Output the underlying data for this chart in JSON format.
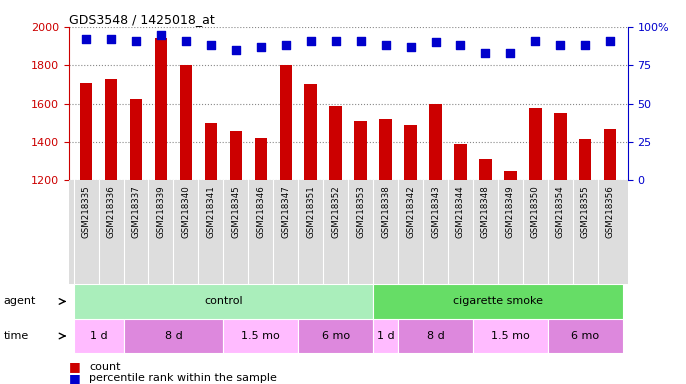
{
  "title": "GDS3548 / 1425018_at",
  "samples": [
    "GSM218335",
    "GSM218336",
    "GSM218337",
    "GSM218339",
    "GSM218340",
    "GSM218341",
    "GSM218345",
    "GSM218346",
    "GSM218347",
    "GSM218351",
    "GSM218352",
    "GSM218353",
    "GSM218338",
    "GSM218342",
    "GSM218343",
    "GSM218344",
    "GSM218348",
    "GSM218349",
    "GSM218350",
    "GSM218354",
    "GSM218355",
    "GSM218356"
  ],
  "counts": [
    1710,
    1730,
    1625,
    1940,
    1800,
    1500,
    1460,
    1420,
    1800,
    1700,
    1590,
    1510,
    1520,
    1490,
    1600,
    1390,
    1310,
    1250,
    1580,
    1550,
    1415,
    1470
  ],
  "percentile_ranks": [
    92,
    92,
    91,
    95,
    91,
    88,
    85,
    87,
    88,
    91,
    91,
    91,
    88,
    87,
    90,
    88,
    83,
    83,
    91,
    88,
    88,
    91
  ],
  "bar_color": "#cc0000",
  "dot_color": "#0000cc",
  "ylim_left": [
    1200,
    2000
  ],
  "ylim_right": [
    0,
    100
  ],
  "yticks_left": [
    1200,
    1400,
    1600,
    1800,
    2000
  ],
  "yticks_right": [
    0,
    25,
    50,
    75,
    100
  ],
  "yticklabels_right": [
    "0",
    "25",
    "50",
    "75",
    "100%"
  ],
  "agent_groups": [
    {
      "label": "control",
      "start": 0,
      "end": 12,
      "color": "#aaeebb"
    },
    {
      "label": "cigarette smoke",
      "start": 12,
      "end": 22,
      "color": "#66dd66"
    }
  ],
  "time_groups": [
    {
      "label": "1 d",
      "start": 0,
      "end": 2,
      "color": "#ffbbff"
    },
    {
      "label": "8 d",
      "start": 2,
      "end": 6,
      "color": "#dd88dd"
    },
    {
      "label": "1.5 mo",
      "start": 6,
      "end": 9,
      "color": "#ffbbff"
    },
    {
      "label": "6 mo",
      "start": 9,
      "end": 12,
      "color": "#dd88dd"
    },
    {
      "label": "1 d",
      "start": 12,
      "end": 13,
      "color": "#ffbbff"
    },
    {
      "label": "8 d",
      "start": 13,
      "end": 16,
      "color": "#dd88dd"
    },
    {
      "label": "1.5 mo",
      "start": 16,
      "end": 19,
      "color": "#ffbbff"
    },
    {
      "label": "6 mo",
      "start": 19,
      "end": 22,
      "color": "#dd88dd"
    }
  ],
  "xlabel_bg": "#dddddd",
  "background_color": "#ffffff",
  "grid_color": "#888888",
  "bar_width": 0.5,
  "dot_size": 40,
  "dot_marker": "s",
  "left_label_color": "#cc0000",
  "right_label_color": "#0000cc"
}
